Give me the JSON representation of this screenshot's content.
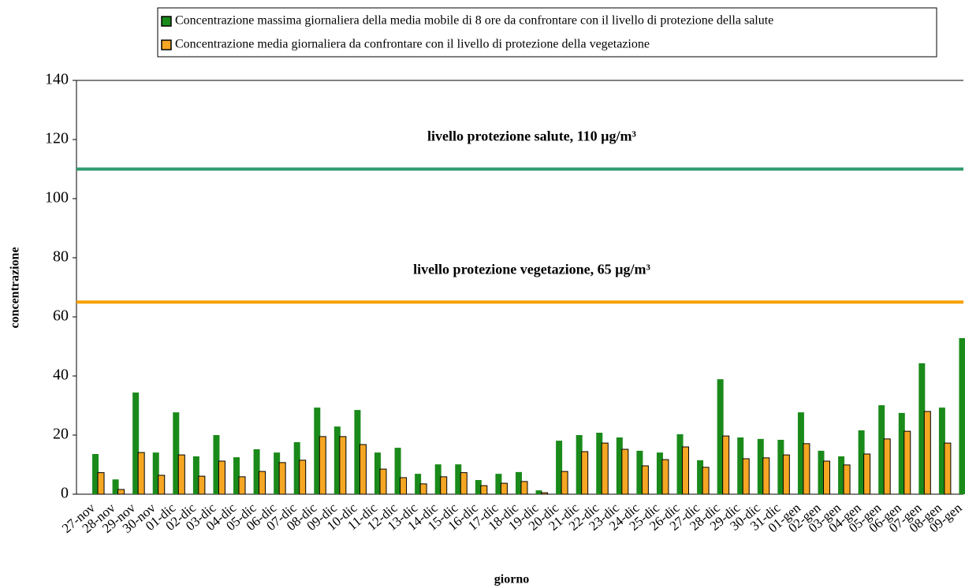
{
  "chart_data": {
    "type": "bar",
    "categories": [
      "27-nov",
      "28-nov",
      "29-nov",
      "30-nov",
      "01-dic",
      "02-dic",
      "03-dic",
      "04-dic",
      "05-dic",
      "06-dic",
      "07-dic",
      "08-dic",
      "09-dic",
      "10-dic",
      "11-dic",
      "12-dic",
      "13-dic",
      "14-dic",
      "15-dic",
      "16-dic",
      "17-dic",
      "18-dic",
      "19-dic",
      "20-dic",
      "21-dic",
      "22-dic",
      "23-dic",
      "24-dic",
      "25-dic",
      "26-dic",
      "27-dic",
      "28-dic",
      "29-dic",
      "30-dic",
      "31-dic",
      "01-gen",
      "02-gen",
      "03-gen",
      "04-gen",
      "05-gen",
      "06-gen",
      "07-gen",
      "08-gen",
      "09-gen"
    ],
    "series": [
      {
        "name": "Concentrazione massima giornaliera della media mobile di 8 ore da confrontare con il livello di protezione della salute",
        "color": "#1a8a1a",
        "values": [
          13.6,
          5,
          34.4,
          14.1,
          27.7,
          12.8,
          20,
          12.5,
          15.2,
          14.1,
          17.6,
          29.3,
          22.9,
          28.5,
          14.1,
          15.7,
          6.9,
          10.1,
          10.1,
          4.8,
          6.9,
          7.5,
          1.3,
          18.1,
          20,
          20.8,
          19.2,
          14.7,
          14.1,
          20.3,
          11.5,
          38.9,
          19.2,
          18.7,
          18.4,
          27.7,
          14.7,
          12.8,
          21.6,
          30.1,
          27.5,
          44.3,
          29.3,
          52.8
        ]
      },
      {
        "name": "Concentrazione media giornaliera da confrontare con il livello di protezione della vegetazione",
        "color": "#f5a623",
        "values": [
          7.3,
          1.6,
          14.1,
          6.4,
          13.3,
          6.1,
          11.2,
          5.9,
          7.7,
          10.7,
          11.5,
          19.5,
          19.5,
          16.8,
          8.5,
          5.6,
          3.5,
          5.9,
          7.3,
          2.9,
          3.7,
          4.3,
          0.5,
          7.7,
          14.4,
          17.3,
          15.2,
          9.6,
          11.7,
          16,
          9.1,
          19.7,
          12,
          12.3,
          13.3,
          17.1,
          11.2,
          9.9,
          13.6,
          18.7,
          21.3,
          28,
          17.3,
          null
        ]
      }
    ],
    "reference_lines": [
      {
        "value": 110,
        "label": "livello protezione salute,      110 µg/m³",
        "color": "#2e9a6e"
      },
      {
        "value": 65,
        "label": "livello protezione vegetazione,      65 µg/m³",
        "color": "#f5a000"
      }
    ],
    "x_label": "giorno",
    "y_label": "concentrazione",
    "ylim": [
      0,
      140
    ],
    "yticks": [
      0,
      20,
      40,
      60,
      80,
      100,
      120,
      140
    ]
  }
}
